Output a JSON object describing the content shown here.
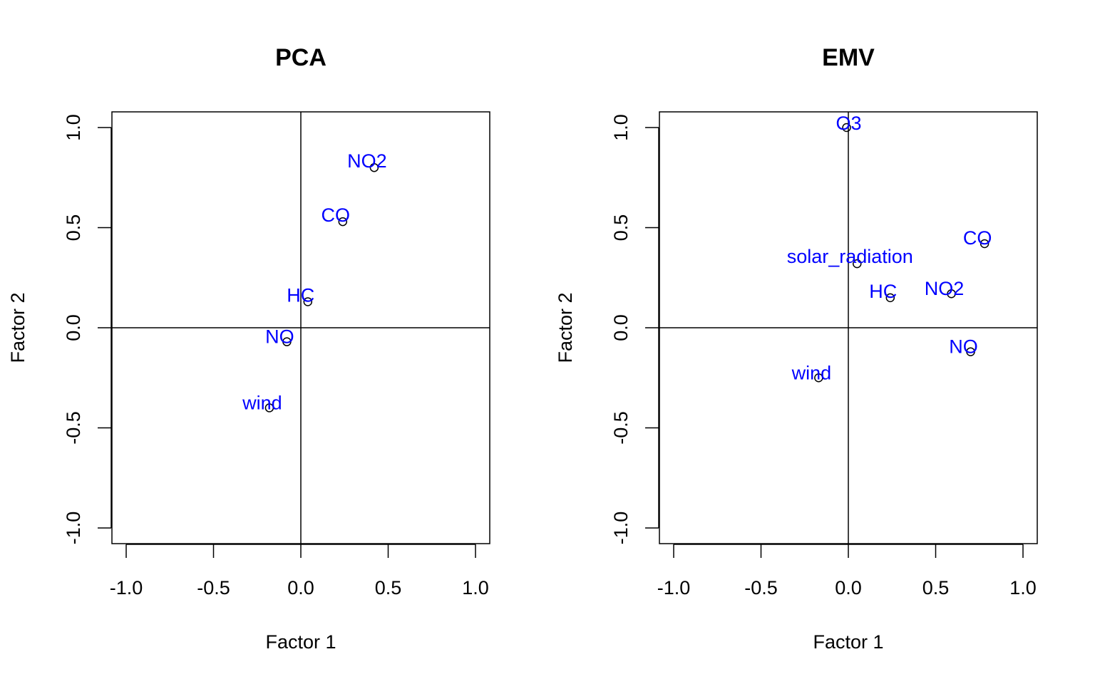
{
  "chart_data": [
    {
      "type": "scatter",
      "title": "PCA",
      "xlabel": "Factor 1",
      "ylabel": "Factor 2",
      "xlim": [
        -1.0,
        1.0
      ],
      "ylim": [
        -1.0,
        1.0
      ],
      "xticks": [
        "-1.0",
        "-0.5",
        "0.0",
        "0.5",
        "1.0"
      ],
      "yticks": [
        "-1.0",
        "-0.5",
        "0.0",
        "0.5",
        "1.0"
      ],
      "reference_lines": {
        "x": 0,
        "y": 0
      },
      "grid": false,
      "label_color": "#0000FF",
      "point_color": "#000000",
      "points": [
        {
          "label": "NO2",
          "x": 0.42,
          "y": 0.8
        },
        {
          "label": "CO",
          "x": 0.24,
          "y": 0.53
        },
        {
          "label": "HC",
          "x": 0.04,
          "y": 0.13
        },
        {
          "label": "NO",
          "x": -0.08,
          "y": -0.07
        },
        {
          "label": "wind",
          "x": -0.18,
          "y": -0.4
        }
      ]
    },
    {
      "type": "scatter",
      "title": "EMV",
      "xlabel": "Factor 1",
      "ylabel": "Factor 2",
      "xlim": [
        -1.0,
        1.0
      ],
      "ylim": [
        -1.0,
        1.0
      ],
      "xticks": [
        "-1.0",
        "-0.5",
        "0.0",
        "0.5",
        "1.0"
      ],
      "yticks": [
        "-1.0",
        "-0.5",
        "0.0",
        "0.5",
        "1.0"
      ],
      "reference_lines": {
        "x": 0,
        "y": 0
      },
      "grid": false,
      "label_color": "#0000FF",
      "point_color": "#000000",
      "points": [
        {
          "label": "O3",
          "x": -0.01,
          "y": 1.0
        },
        {
          "label": "CO",
          "x": 0.78,
          "y": 0.42
        },
        {
          "label": "solar_radiation",
          "x": 0.05,
          "y": 0.32
        },
        {
          "label": "HC",
          "x": 0.24,
          "y": 0.15
        },
        {
          "label": "NO2",
          "x": 0.59,
          "y": 0.17
        },
        {
          "label": "NO",
          "x": 0.7,
          "y": -0.12
        },
        {
          "label": "wind",
          "x": -0.17,
          "y": -0.25
        }
      ]
    }
  ]
}
